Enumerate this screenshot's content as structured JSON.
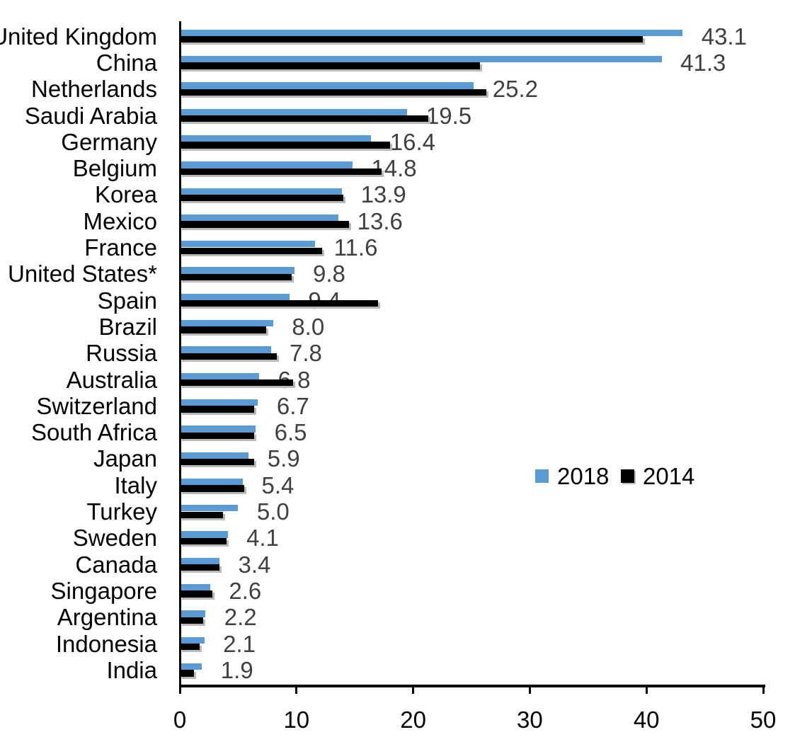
{
  "chart_data": {
    "type": "bar",
    "orientation": "horizontal",
    "title": "",
    "categories": [
      "United Kingdom",
      "China",
      "Netherlands",
      "Saudi Arabia",
      "Germany",
      "Belgium",
      "Korea",
      "Mexico",
      "France",
      "United States*",
      "Spain",
      "Brazil",
      "Russia",
      "Australia",
      "Switzerland",
      "South Africa",
      "Japan",
      "Italy",
      "Turkey",
      "Sweden",
      "Canada",
      "Singapore",
      "Argentina",
      "Indonesia",
      "India"
    ],
    "series": [
      {
        "name": "2018",
        "color": "#5B9BD5",
        "values": [
          43.1,
          41.3,
          25.2,
          19.5,
          16.4,
          14.8,
          13.9,
          13.6,
          11.6,
          9.8,
          9.4,
          8.0,
          7.8,
          6.8,
          6.7,
          6.5,
          5.9,
          5.4,
          5.0,
          4.1,
          3.4,
          2.6,
          2.2,
          2.1,
          1.9
        ],
        "data_labels": [
          "43.1",
          "41.3",
          "25.2",
          "19.5",
          "16.4",
          "14.8",
          "13.9",
          "13.6",
          "11.6",
          "9.8",
          "9.4",
          "8.0",
          "7.8",
          "6.8",
          "6.7",
          "6.5",
          "5.9",
          "5.4",
          "5.0",
          "4.1",
          "3.4",
          "2.6",
          "2.2",
          "2.1",
          "1.9"
        ]
      },
      {
        "name": "2014",
        "color": "#000000",
        "values": [
          39.7,
          25.7,
          26.3,
          21.3,
          18.0,
          17.3,
          14.0,
          14.5,
          12.2,
          9.6,
          17.0,
          7.4,
          8.3,
          9.7,
          6.4,
          6.4,
          6.4,
          5.5,
          3.7,
          4.0,
          3.4,
          2.8,
          2.0,
          1.7,
          1.2
        ]
      }
    ],
    "xlabel": "",
    "ylabel": "",
    "xlim": [
      0,
      50
    ],
    "x_ticks": [
      "0",
      "10",
      "20",
      "30",
      "40",
      "50"
    ],
    "grid": false,
    "legend_position": "center-right",
    "value_labels_series": "2018",
    "value_label_color": "#404040",
    "axis_color": "#000000"
  }
}
